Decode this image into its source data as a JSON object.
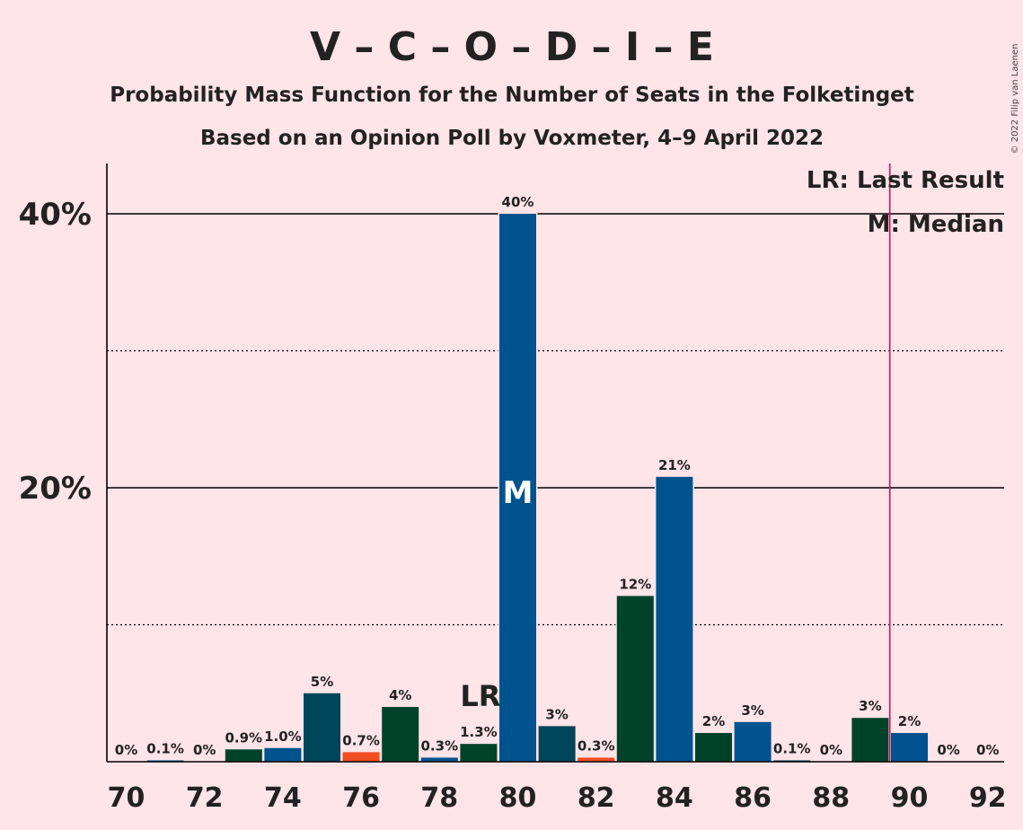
{
  "title": "V – C – O – D – I – E",
  "subtitle_1": "Probability Mass Function for the Number of Seats in the Folketinget",
  "subtitle_2": "Based on an Opinion Poll by Voxmeter, 4–9 April 2022",
  "copyright": "© 2022 Filip van Laenen",
  "legend": {
    "last_result": "LR: Last Result",
    "median": "M: Median"
  },
  "markers": {
    "last_result_label": "LR",
    "last_result_seats": 79,
    "median_label": "M",
    "median_seats": 80,
    "majority_line_seats": 89.5
  },
  "colors": {
    "background": "#FFE4E8",
    "dark_green": "#00432A",
    "blue": "#00538F",
    "teal": "#004559",
    "orange": "#F04E23",
    "majority_line": "#C2185B",
    "axis": "#000000"
  },
  "chart_data": {
    "type": "bar",
    "xlim": [
      70,
      92
    ],
    "ylim": [
      0,
      44
    ],
    "y_ticks": [
      {
        "value": 20,
        "label": "20%"
      },
      {
        "value": 40,
        "label": "40%"
      }
    ],
    "y_gridlines_solid": [
      20,
      40
    ],
    "y_gridlines_dotted": [
      10,
      30
    ],
    "x_tick_labels": [
      {
        "value": 70,
        "label": "70"
      },
      {
        "value": 72,
        "label": "72"
      },
      {
        "value": 74,
        "label": "74"
      },
      {
        "value": 76,
        "label": "76"
      },
      {
        "value": 78,
        "label": "78"
      },
      {
        "value": 80,
        "label": "80"
      },
      {
        "value": 82,
        "label": "82"
      },
      {
        "value": 84,
        "label": "84"
      },
      {
        "value": 86,
        "label": "86"
      },
      {
        "value": 88,
        "label": "88"
      },
      {
        "value": 90,
        "label": "90"
      },
      {
        "value": 92,
        "label": "92"
      }
    ],
    "bars": [
      {
        "x": 70,
        "value": 0.0,
        "label": "0%",
        "color": "#00432A"
      },
      {
        "x": 71,
        "value": 0.1,
        "label": "0.1%",
        "color": "#00538F"
      },
      {
        "x": 72,
        "value": 0.0,
        "label": "0%",
        "color": "#004559"
      },
      {
        "x": 73,
        "value": 0.9,
        "label": "0.9%",
        "color": "#00432A"
      },
      {
        "x": 74,
        "value": 1.0,
        "label": "1.0%",
        "color": "#00538F"
      },
      {
        "x": 75,
        "value": 5.0,
        "label": "5%",
        "color": "#004559"
      },
      {
        "x": 76,
        "value": 0.7,
        "label": "0.7%",
        "color": "#F04E23"
      },
      {
        "x": 77,
        "value": 4.0,
        "label": "4%",
        "color": "#00432A"
      },
      {
        "x": 78,
        "value": 0.3,
        "label": "0.3%",
        "color": "#00538F"
      },
      {
        "x": 79,
        "value": 1.3,
        "label": "1.3%",
        "color": "#00432A"
      },
      {
        "x": 80,
        "value": 40.0,
        "label": "40%",
        "color": "#00538F"
      },
      {
        "x": 81,
        "value": 2.6,
        "label": "3%",
        "color": "#004559"
      },
      {
        "x": 82,
        "value": 0.3,
        "label": "0.3%",
        "color": "#F04E23"
      },
      {
        "x": 83,
        "value": 12.1,
        "label": "12%",
        "color": "#00432A"
      },
      {
        "x": 84,
        "value": 20.8,
        "label": "21%",
        "color": "#00538F"
      },
      {
        "x": 85,
        "value": 2.1,
        "label": "2%",
        "color": "#00432A"
      },
      {
        "x": 86,
        "value": 2.9,
        "label": "3%",
        "color": "#00538F"
      },
      {
        "x": 87,
        "value": 0.1,
        "label": "0.1%",
        "color": "#004559"
      },
      {
        "x": 88,
        "value": 0.0,
        "label": "0%",
        "color": "#00432A"
      },
      {
        "x": 89,
        "value": 3.2,
        "label": "3%",
        "color": "#00432A"
      },
      {
        "x": 90,
        "value": 2.1,
        "label": "2%",
        "color": "#00538F"
      },
      {
        "x": 91,
        "value": 0.0,
        "label": "0%",
        "color": "#004559"
      },
      {
        "x": 92,
        "value": 0.0,
        "label": "0%",
        "color": "#00432A"
      }
    ]
  }
}
